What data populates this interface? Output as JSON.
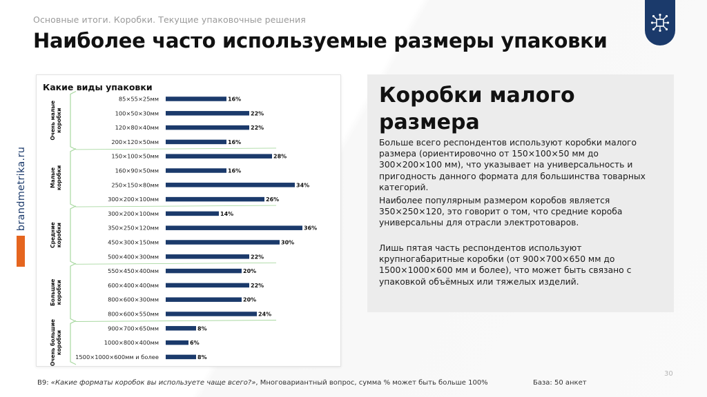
{
  "header": {
    "breadcrumb": "Основные итоги. Коробки. Текущие упаковочные решения",
    "title": "Наиболее часто используемые размеры упаковки"
  },
  "sidebar": {
    "brand": "brandmetrika.ru"
  },
  "logo": {
    "icon": "circuit-chip-icon"
  },
  "colors": {
    "bar": "#1b3a6b",
    "accent": "#e5651f",
    "group_bracket": "#a8d8a0",
    "panel_bg": "#ececec"
  },
  "chart_data": {
    "type": "bar",
    "orientation": "horizontal",
    "title": "Какие виды упаковки",
    "unit": "%",
    "categories": [
      "85×55×25мм",
      "100×50×30мм",
      "120×80×40мм",
      "200×120×50мм",
      "150×100×50мм",
      "160×90×50мм",
      "250×150×80мм",
      "300×200×100мм",
      "300×200×100мм",
      "350×250×120мм",
      "450×300×150мм",
      "500×400×300мм",
      "550×450×400мм",
      "600×400×400мм",
      "800×600×300мм",
      "800×600×550мм",
      "900×700×650мм",
      "1000×800×400мм",
      "1500×1000×600мм и более"
    ],
    "values": [
      16,
      22,
      22,
      16,
      28,
      16,
      34,
      26,
      14,
      36,
      30,
      22,
      20,
      22,
      20,
      24,
      8,
      6,
      8
    ],
    "value_labels": [
      "16%",
      "22%",
      "22%",
      "16%",
      "28%",
      "16%",
      "34%",
      "26%",
      "14%",
      "36%",
      "30%",
      "22%",
      "20%",
      "22%",
      "20%",
      "24%",
      "8%",
      "6%",
      "8%"
    ],
    "xlim": [
      0,
      40
    ],
    "groups": [
      {
        "label": "Очень малые коробки",
        "lines": [
          "Очень малые",
          "коробки"
        ],
        "start": 0,
        "end": 3
      },
      {
        "label": "Малые коробки",
        "lines": [
          "Малые",
          "коробки"
        ],
        "start": 4,
        "end": 7
      },
      {
        "label": "Средние коробки",
        "lines": [
          "Средние",
          "коробки"
        ],
        "start": 8,
        "end": 11
      },
      {
        "label": "Большие коробки",
        "lines": [
          "Большие",
          "коробки"
        ],
        "start": 12,
        "end": 15
      },
      {
        "label": "Очень большие коробки",
        "lines": [
          "Очень большие",
          "коробки"
        ],
        "start": 16,
        "end": 18
      }
    ]
  },
  "panel": {
    "heading": "Коробки малого размера",
    "paragraphs": [
      "Больше всего респондентов используют коробки малого размера (ориентировочно от 150×100×50 мм до 300×200×100 мм), что указывает на универсальность и пригодность данного формата для большинства товарных категорий.",
      "Наиболее популярным размером коробов является 350×250×120, это говорит о том, что средние короба универсальны для отрасли электротоваров.",
      "Лишь пятая часть респондентов используют крупногабаритные коробки (от 900×700×650 мм до 1500×1000×600 мм и более), что может быть связано с упаковкой объёмных или тяжелых изделий."
    ]
  },
  "footer": {
    "question_prefix": "В9: ",
    "question": "«Какие форматы коробок вы используете чаще всего?»",
    "question_suffix": ", Многовариантный вопрос, сумма % может быть больше 100%",
    "base": "База: 50 анкет",
    "page_number": "30"
  }
}
